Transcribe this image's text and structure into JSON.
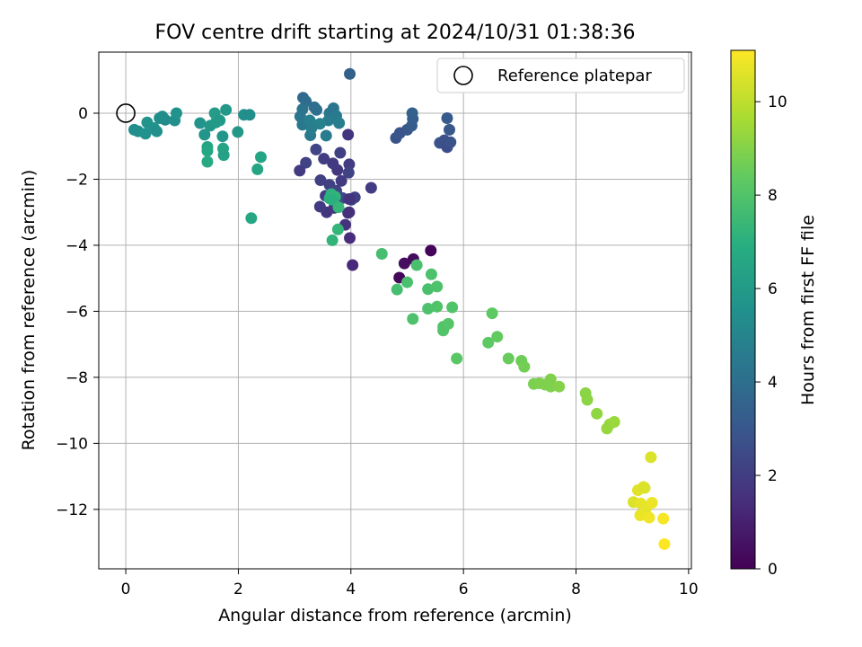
{
  "chart_data": {
    "type": "scatter",
    "title": "FOV centre drift starting at 2024/10/31 01:38:36",
    "xlabel": "Angular distance from reference (arcmin)",
    "ylabel": "Rotation from reference (arcmin)",
    "xlim": [
      -0.48,
      10.05
    ],
    "ylim": [
      -13.8,
      1.85
    ],
    "xticks": [
      "0",
      "2",
      "4",
      "6",
      "8",
      "10"
    ],
    "yticks": [
      "−12",
      "−10",
      "−8",
      "−6",
      "−4",
      "−2",
      "0"
    ],
    "grid": true,
    "legend": {
      "label": "Reference platepar",
      "placement": "top-right"
    },
    "reference_point": {
      "x": 0,
      "y": 0
    },
    "colorbar": {
      "label": "Hours from first FF file",
      "colormap": "viridis",
      "range": [
        0,
        11.1
      ],
      "ticks": [
        "0",
        "2",
        "4",
        "6",
        "8",
        "10"
      ]
    },
    "series": [
      {
        "points": [
          [
            4.86,
            -4.98
          ],
          [
            4.95,
            -4.55
          ],
          [
            5.11,
            -4.42
          ],
          [
            5.42,
            -4.16
          ],
          [
            3.98,
            -3.78
          ],
          [
            4.03,
            -4.6
          ],
          [
            3.95,
            -3.02
          ],
          [
            3.9,
            -3.38
          ],
          [
            3.7,
            -2.87
          ],
          [
            3.57,
            -3.0
          ],
          [
            3.45,
            -2.83
          ],
          [
            3.55,
            -2.5
          ],
          [
            3.62,
            -2.17
          ],
          [
            3.74,
            -2.35
          ],
          [
            3.83,
            -2.05
          ],
          [
            3.76,
            -1.72
          ],
          [
            3.52,
            -1.38
          ],
          [
            3.68,
            -1.52
          ],
          [
            3.81,
            -1.2
          ],
          [
            3.97,
            -1.55
          ],
          [
            3.96,
            -1.8
          ],
          [
            3.85,
            -2.57
          ],
          [
            4.01,
            -2.62
          ],
          [
            4.07,
            -2.55
          ],
          [
            4.36,
            -2.26
          ],
          [
            3.2,
            -1.5
          ],
          [
            3.38,
            -1.1
          ],
          [
            3.46,
            -2.03
          ],
          [
            3.09,
            -1.74
          ],
          [
            3.95,
            -0.65
          ],
          [
            3.97,
            -2.6
          ],
          [
            3.97,
            -3.0
          ],
          [
            4.8,
            -0.75
          ],
          [
            4.87,
            -0.6
          ],
          [
            5.0,
            -0.5
          ],
          [
            5.08,
            -0.38
          ],
          [
            5.1,
            -0.17
          ],
          [
            5.09,
            0.0
          ],
          [
            5.58,
            -0.9
          ],
          [
            5.66,
            -0.82
          ],
          [
            5.71,
            -1.03
          ],
          [
            5.77,
            -0.88
          ],
          [
            5.75,
            -0.5
          ],
          [
            5.71,
            -0.15
          ],
          [
            3.98,
            1.19
          ],
          [
            3.15,
            0.47
          ],
          [
            3.2,
            0.36
          ],
          [
            3.39,
            0.1
          ],
          [
            3.35,
            0.18
          ],
          [
            3.14,
            0.12
          ],
          [
            3.1,
            -0.1
          ],
          [
            3.14,
            -0.35
          ],
          [
            3.28,
            -0.67
          ],
          [
            3.56,
            -0.68
          ],
          [
            3.62,
            0.0
          ],
          [
            3.69,
            0.15
          ],
          [
            3.74,
            -0.08
          ],
          [
            3.6,
            -0.22
          ],
          [
            3.79,
            -0.3
          ],
          [
            3.27,
            -0.22
          ],
          [
            3.45,
            -0.32
          ],
          [
            3.3,
            -0.45
          ],
          [
            0.15,
            -0.5
          ],
          [
            0.22,
            -0.55
          ],
          [
            0.35,
            -0.62
          ],
          [
            0.38,
            -0.28
          ],
          [
            0.5,
            -0.45
          ],
          [
            0.55,
            -0.55
          ],
          [
            0.6,
            -0.15
          ],
          [
            0.7,
            -0.2
          ],
          [
            0.87,
            -0.22
          ],
          [
            0.9,
            0.0
          ],
          [
            0.65,
            -0.1
          ],
          [
            1.32,
            -0.3
          ],
          [
            1.4,
            -0.65
          ],
          [
            1.5,
            -0.38
          ],
          [
            1.6,
            -0.28
          ],
          [
            1.58,
            0.0
          ],
          [
            1.67,
            -0.22
          ],
          [
            1.78,
            0.1
          ],
          [
            1.72,
            -0.7
          ],
          [
            1.99,
            -0.57
          ],
          [
            2.1,
            -0.05
          ],
          [
            2.2,
            -0.05
          ],
          [
            1.45,
            -1.02
          ],
          [
            1.45,
            -1.14
          ],
          [
            1.45,
            -1.47
          ],
          [
            1.73,
            -1.07
          ],
          [
            1.74,
            -1.27
          ],
          [
            2.4,
            -1.33
          ],
          [
            2.34,
            -1.7
          ],
          [
            2.23,
            -3.18
          ],
          [
            3.62,
            -2.58
          ],
          [
            3.65,
            -2.45
          ],
          [
            3.72,
            -2.53
          ],
          [
            3.67,
            -2.62
          ],
          [
            3.78,
            -2.85
          ],
          [
            3.77,
            -3.52
          ],
          [
            3.67,
            -3.85
          ],
          [
            4.55,
            -4.26
          ],
          [
            4.82,
            -5.34
          ],
          [
            5.0,
            -5.12
          ],
          [
            5.17,
            -4.6
          ],
          [
            5.43,
            -4.88
          ],
          [
            5.37,
            -5.33
          ],
          [
            5.53,
            -5.25
          ],
          [
            5.1,
            -6.23
          ],
          [
            5.37,
            -5.92
          ],
          [
            5.53,
            -5.86
          ],
          [
            5.64,
            -6.58
          ],
          [
            5.64,
            -6.47
          ],
          [
            5.73,
            -6.38
          ],
          [
            5.8,
            -5.88
          ],
          [
            5.88,
            -7.43
          ],
          [
            6.51,
            -6.06
          ],
          [
            6.44,
            -6.95
          ],
          [
            6.6,
            -6.77
          ],
          [
            6.8,
            -7.43
          ],
          [
            7.03,
            -7.5
          ],
          [
            7.08,
            -7.68
          ],
          [
            7.25,
            -8.2
          ],
          [
            7.35,
            -8.18
          ],
          [
            7.45,
            -8.22
          ],
          [
            7.55,
            -8.28
          ],
          [
            7.55,
            -8.06
          ],
          [
            7.7,
            -8.28
          ],
          [
            8.17,
            -8.48
          ],
          [
            8.2,
            -8.68
          ],
          [
            8.37,
            -9.1
          ],
          [
            8.55,
            -9.55
          ],
          [
            8.6,
            -9.42
          ],
          [
            8.68,
            -9.35
          ],
          [
            9.02,
            -11.78
          ],
          [
            9.1,
            -11.42
          ],
          [
            9.15,
            -11.82
          ],
          [
            9.14,
            -12.18
          ],
          [
            9.2,
            -11.32
          ],
          [
            9.22,
            -11.35
          ],
          [
            9.25,
            -11.95
          ],
          [
            9.3,
            -12.25
          ],
          [
            9.33,
            -10.42
          ],
          [
            9.35,
            -11.8
          ],
          [
            9.55,
            -12.28
          ],
          [
            9.57,
            -13.05
          ]
        ],
        "hours": [
          0.2,
          0.4,
          0.3,
          0.1,
          1.4,
          1.3,
          1.5,
          1.6,
          1.8,
          1.7,
          1.9,
          2.0,
          2.1,
          2.2,
          1.9,
          1.8,
          2.0,
          1.9,
          2.1,
          2.0,
          2.2,
          2.4,
          2.3,
          2.1,
          2.0,
          2.2,
          2.3,
          2.1,
          1.9,
          1.7,
          1.6,
          1.5,
          2.8,
          2.9,
          3.0,
          3.2,
          3.3,
          3.4,
          2.8,
          2.7,
          2.6,
          2.8,
          3.0,
          3.1,
          3.4,
          3.8,
          3.9,
          4.1,
          4.0,
          4.2,
          4.3,
          4.4,
          4.5,
          4.6,
          4.4,
          4.3,
          4.5,
          4.6,
          4.7,
          4.8,
          4.9,
          4.7,
          5.4,
          5.5,
          5.6,
          5.7,
          5.6,
          5.5,
          5.4,
          5.3,
          5.5,
          5.6,
          5.4,
          5.7,
          5.8,
          5.9,
          6.0,
          6.1,
          6.0,
          5.9,
          5.8,
          5.9,
          5.5,
          5.4,
          6.5,
          6.6,
          6.7,
          6.4,
          6.3,
          6.4,
          6.5,
          6.6,
          7.0,
          7.1,
          7.2,
          7.0,
          7.3,
          7.3,
          7.2,
          7.7,
          7.7,
          7.8,
          7.8,
          7.9,
          7.8,
          7.9,
          7.9,
          7.9,
          8.0,
          8.0,
          8.0,
          8.1,
          8.0,
          8.2,
          8.3,
          8.3,
          8.4,
          8.5,
          8.6,
          8.7,
          8.8,
          8.9,
          8.9,
          8.9,
          8.9,
          9.0,
          9.1,
          9.1,
          9.2,
          9.3,
          9.3,
          9.4,
          10.5,
          10.6,
          10.7,
          10.8,
          10.6,
          10.5,
          10.7,
          10.9,
          10.5,
          10.8,
          11.0,
          11.1
        ]
      }
    ]
  }
}
